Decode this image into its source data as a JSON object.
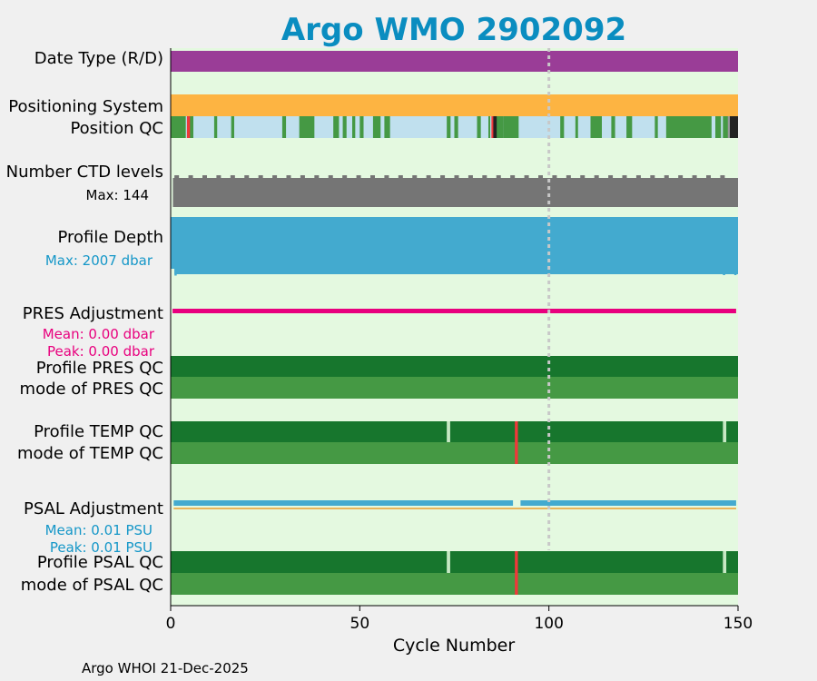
{
  "chart_data": {
    "type": "bar",
    "title": "Argo WMO 2902092",
    "xlabel": "Cycle Number",
    "xlim": [
      0,
      150
    ],
    "xticks": [
      "0",
      "50",
      "100",
      "150"
    ],
    "footer": "Argo WHOI 21-Dec-2025",
    "colors": {
      "title": "#0a8dc0",
      "panel_bg": "#e4f9e0",
      "date_type": "#9a3d97",
      "positioning": "#fdb442",
      "pos_good": "#459944",
      "pos_interp": "#c0e0ee",
      "pos_red": "#f0383a",
      "pos_black": "#222222",
      "ctd": "#757575",
      "depth": "#43aacf",
      "pres_adj": "#e8007e",
      "qc_profile": "#17762d",
      "qc_mode": "#459944",
      "qc_bad": "#f0383a",
      "qc_gap": "#c7e8c4",
      "psal_adj": "#43aacf",
      "psal_zero": "#e8b45a",
      "ref_line": "#c8c8c8",
      "annot_black": "#000000",
      "annot_blue": "#1597c8",
      "annot_pink": "#e8007e"
    },
    "ref_line_cycle": 100,
    "rows": {
      "date_type": {
        "label": "Date Type (R/D)"
      },
      "positioning": {
        "label": "Positioning System"
      },
      "position_qc": {
        "label": "Position QC",
        "good_ranges": [
          [
            0,
            4
          ],
          [
            4.8,
            6
          ],
          [
            11.5,
            12.3
          ],
          [
            16,
            16.8
          ],
          [
            29.5,
            30.5
          ],
          [
            34,
            38
          ],
          [
            43,
            44.5
          ],
          [
            45.5,
            46.5
          ],
          [
            48,
            48.8
          ],
          [
            50,
            51
          ],
          [
            53.5,
            55.5
          ],
          [
            56.5,
            58
          ],
          [
            73,
            74
          ],
          [
            75,
            76
          ],
          [
            81,
            82
          ],
          [
            84,
            84.5
          ],
          [
            86,
            88
          ],
          [
            88,
            92
          ],
          [
            103,
            104
          ],
          [
            107,
            107.7
          ],
          [
            111,
            114
          ],
          [
            116.5,
            117.5
          ],
          [
            120.5,
            122
          ],
          [
            128,
            128.8
          ],
          [
            131,
            143
          ],
          [
            144,
            145.5
          ],
          [
            146,
            147.5
          ]
        ],
        "red_cycles": [
          4.3,
          84.8
        ],
        "black_ranges": [
          [
            85.3,
            86.2
          ],
          [
            147.8,
            150
          ]
        ],
        "gray_cycles": [
          147.3
        ]
      },
      "ctd_levels": {
        "label": "Number CTD levels",
        "max_label": "Max: 144",
        "max": 144
      },
      "profile_depth": {
        "label": "Profile Depth",
        "max_label": "Max: 2007 dbar",
        "max": 2007
      },
      "pres_adjustment": {
        "label": "PRES Adjustment",
        "mean_label": "Mean: 0.00 dbar",
        "peak_label": "Peak: 0.00 dbar",
        "mean": 0.0,
        "peak": 0.0
      },
      "pres_qc": {
        "label": "Profile PRES QC",
        "mode_label": "mode of PRES QC"
      },
      "temp_qc": {
        "label": "Profile TEMP QC",
        "mode_label": "mode of TEMP QC",
        "gap_cycles": [
          73,
          146
        ],
        "bad_cycle": 91
      },
      "psal_adjustment": {
        "label": "PSAL Adjustment",
        "mean_label": "Mean: 0.01 PSU",
        "peak_label": "Peak: 0.01 PSU",
        "mean": 0.01,
        "peak": 0.01,
        "gap_cycle": 91
      },
      "psal_qc": {
        "label": "Profile PSAL QC",
        "mode_label": "mode of PSAL QC",
        "gap_cycles": [
          73,
          146
        ],
        "bad_cycle": 91
      }
    }
  }
}
